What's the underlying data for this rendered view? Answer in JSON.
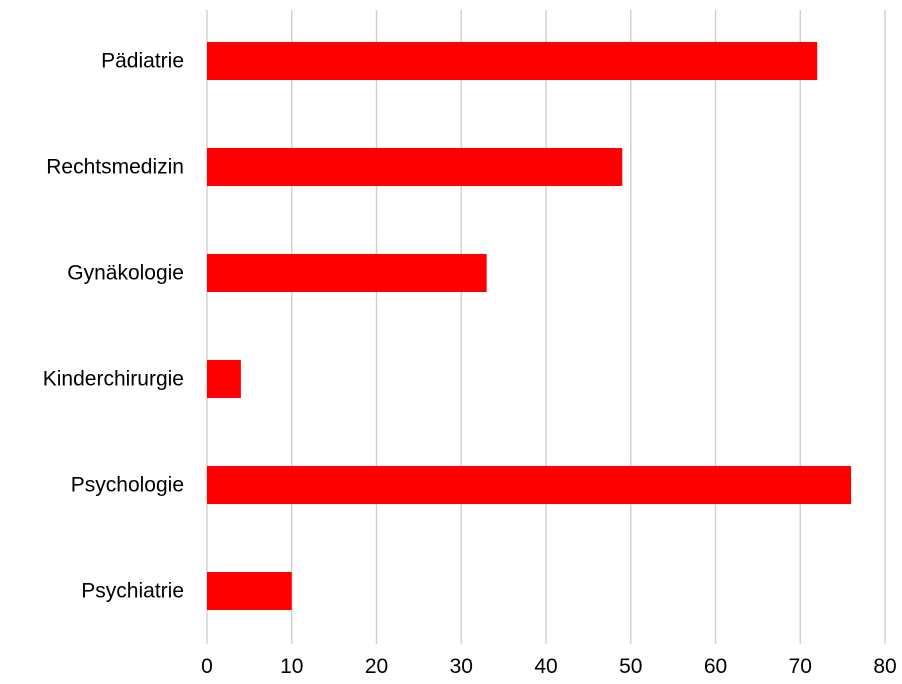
{
  "chart_data": {
    "type": "bar",
    "orientation": "horizontal",
    "categories": [
      "Pädiatrie",
      "Rechtsmedizin",
      "Gynäkologie",
      "Kinderchirurgie",
      "Psychologie",
      "Psychiatrie"
    ],
    "values": [
      72,
      49,
      33,
      4,
      76,
      10
    ],
    "title": "",
    "xlabel": "",
    "ylabel": "",
    "xlim": [
      0,
      80
    ],
    "xticks": [
      0,
      10,
      20,
      30,
      40,
      50,
      60,
      70,
      80
    ],
    "grid": "vertical",
    "legend": "none",
    "bar_color": "#ff0000",
    "grid_color": "#d0d0d0"
  }
}
